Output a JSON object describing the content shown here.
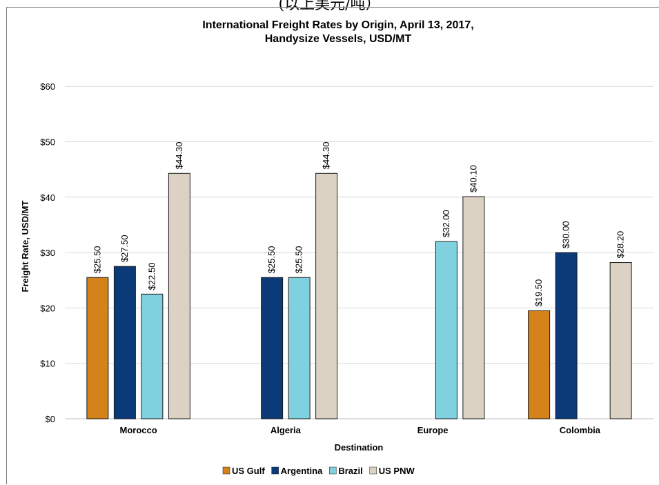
{
  "caption": "(以上美元/吨）",
  "chart_data": {
    "type": "bar",
    "title": "International Freight Rates by Origin, April 13, 2017,",
    "subtitle": "Handysize Vessels, USD/MT",
    "xlabel": "Destination",
    "ylabel": "Freight Rate, USD/MT",
    "ylim": [
      0,
      65
    ],
    "yticks": [
      0,
      10,
      20,
      30,
      40,
      50,
      60
    ],
    "ytick_labels": [
      "$0",
      "$10",
      "$20",
      "$30",
      "$40",
      "$50",
      "$60"
    ],
    "categories": [
      "Morocco",
      "Algeria",
      "Europe",
      "Colombia"
    ],
    "series": [
      {
        "name": "US Gulf",
        "color": "#d4821a",
        "values": [
          25.5,
          null,
          null,
          19.5
        ],
        "labels": [
          "$25.50",
          "",
          "",
          "$19.50"
        ]
      },
      {
        "name": "Argentina",
        "color": "#0b3a79",
        "values": [
          27.5,
          25.5,
          null,
          30.0
        ],
        "labels": [
          "$27.50",
          "$25.50",
          "",
          "$30.00"
        ]
      },
      {
        "name": "Brazil",
        "color": "#7fd1e0",
        "values": [
          22.5,
          25.5,
          32.0,
          null
        ],
        "labels": [
          "$22.50",
          "$25.50",
          "$32.00",
          ""
        ]
      },
      {
        "name": "US PNW",
        "color": "#dbd2c4",
        "values": [
          44.3,
          44.3,
          40.1,
          28.2
        ],
        "labels": [
          "$44.30",
          "$44.30",
          "$40.10",
          "$28.20"
        ]
      }
    ],
    "grid": true,
    "legend_position": "bottom"
  }
}
